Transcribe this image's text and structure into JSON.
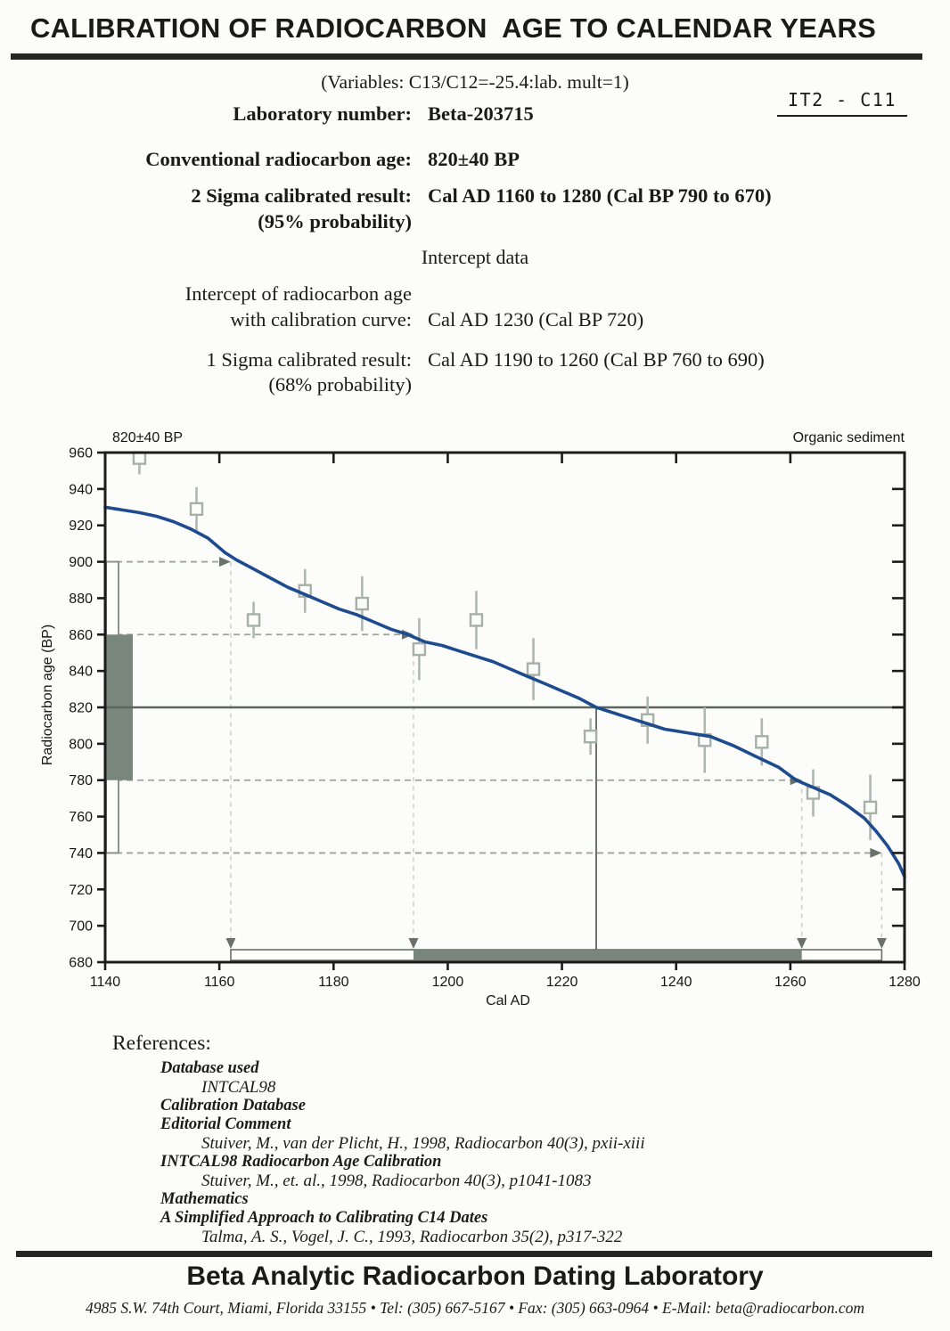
{
  "title": "CALIBRATION OF RADIOCARBON  AGE TO CALENDAR YEARS",
  "variables_line": "(Variables:  C13/C12=-25.4:lab. mult=1)",
  "sample_code": "IT2 - C11",
  "report": {
    "rows": [
      {
        "label": "Laboratory number:",
        "value": "Beta-203715"
      },
      {
        "label": "Conventional radiocarbon age:",
        "value": "820±40 BP"
      },
      {
        "label": "2 Sigma calibrated result:",
        "sublabel": "(95% probability)",
        "value": "Cal AD 1160 to 1280 (Cal BP 790 to 670)"
      }
    ],
    "intercept_heading": "Intercept data",
    "intercept_row": {
      "label_line1": "Intercept of radiocarbon age",
      "label_line2": "with calibration curve:",
      "value": "Cal AD 1230 (Cal BP 720)"
    },
    "one_sigma_row": {
      "label": "1 Sigma calibrated result:",
      "sublabel": "(68% probability)",
      "value": "Cal AD 1190 to 1260 (Cal BP 760 to 690)"
    }
  },
  "chart_data": {
    "type": "line",
    "title": "820±40 BP",
    "right_label": "Organic sediment",
    "xlabel": "Cal AD",
    "ylabel": "Radiocarbon age (BP)",
    "xlim": [
      1140,
      1280
    ],
    "ylim": [
      680,
      960
    ],
    "xticks": [
      1140,
      1160,
      1180,
      1200,
      1220,
      1240,
      1260,
      1280
    ],
    "yticks": [
      680,
      700,
      720,
      740,
      760,
      780,
      800,
      820,
      840,
      860,
      880,
      900,
      920,
      940,
      960
    ],
    "grid": false,
    "curve": {
      "name": "INTCAL98 calibration curve",
      "color": "#1e4b8f",
      "points": [
        [
          1140,
          930
        ],
        [
          1143,
          928.5
        ],
        [
          1146,
          927
        ],
        [
          1149,
          925
        ],
        [
          1152,
          922
        ],
        [
          1155,
          918
        ],
        [
          1158,
          913
        ],
        [
          1161,
          905
        ],
        [
          1163,
          901
        ],
        [
          1166,
          896
        ],
        [
          1169,
          891
        ],
        [
          1172,
          886
        ],
        [
          1175,
          882
        ],
        [
          1178,
          878
        ],
        [
          1181,
          874
        ],
        [
          1184,
          871
        ],
        [
          1187,
          867
        ],
        [
          1190,
          863
        ],
        [
          1193,
          860
        ],
        [
          1196,
          856
        ],
        [
          1199,
          854
        ],
        [
          1202,
          851
        ],
        [
          1205,
          848
        ],
        [
          1208,
          845
        ],
        [
          1211,
          841
        ],
        [
          1214,
          837
        ],
        [
          1217,
          833
        ],
        [
          1220,
          829
        ],
        [
          1223,
          825
        ],
        [
          1226,
          820
        ],
        [
          1229,
          817
        ],
        [
          1232,
          814
        ],
        [
          1235,
          811
        ],
        [
          1238,
          808
        ],
        [
          1242,
          806
        ],
        [
          1246,
          804
        ],
        [
          1250,
          799
        ],
        [
          1254,
          793
        ],
        [
          1258,
          787
        ],
        [
          1261,
          780
        ],
        [
          1264,
          776
        ],
        [
          1267,
          772
        ],
        [
          1270,
          766
        ],
        [
          1273,
          759
        ],
        [
          1275,
          752
        ],
        [
          1277,
          744
        ],
        [
          1279,
          734
        ],
        [
          1280,
          727
        ]
      ]
    },
    "measurements": {
      "name": "calibration data points with error bars",
      "points": [
        {
          "cal": 1146,
          "bp": 957,
          "err": 9
        },
        {
          "cal": 1156,
          "bp": 929,
          "err": 12
        },
        {
          "cal": 1166,
          "bp": 868,
          "err": 10
        },
        {
          "cal": 1175,
          "bp": 884,
          "err": 12
        },
        {
          "cal": 1185,
          "bp": 877,
          "err": 15
        },
        {
          "cal": 1195,
          "bp": 852,
          "err": 17
        },
        {
          "cal": 1205,
          "bp": 868,
          "err": 16
        },
        {
          "cal": 1215,
          "bp": 841,
          "err": 17
        },
        {
          "cal": 1225,
          "bp": 804,
          "err": 10
        },
        {
          "cal": 1235,
          "bp": 813,
          "err": 13
        },
        {
          "cal": 1245,
          "bp": 802,
          "err": 18
        },
        {
          "cal": 1255,
          "bp": 801,
          "err": 13
        },
        {
          "cal": 1264,
          "bp": 773,
          "err": 13
        },
        {
          "cal": 1274,
          "bp": 765,
          "err": 18
        }
      ]
    },
    "conventional_age_bp": 820,
    "sigma_bp": 40,
    "intercept": {
      "cal": 1226,
      "bp": 820
    },
    "age_box": {
      "two_sigma_bp": [
        740,
        900
      ],
      "one_sigma_bp": [
        780,
        860
      ]
    },
    "guides": [
      {
        "bp": 900,
        "cal": 1162
      },
      {
        "bp": 860,
        "cal": 1194
      },
      {
        "bp": 780,
        "cal": 1262
      },
      {
        "bp": 740,
        "cal": 1276
      }
    ],
    "calibrated_range_bar": {
      "two_sigma_cal": [
        1162,
        1276
      ],
      "one_sigma_cal": [
        1194,
        1262
      ]
    },
    "colors": {
      "box_fill": "#79867c",
      "error_bar": "#aeb8ae",
      "guide_dash": "#9ba49b",
      "arrow": "#68726a",
      "frame": "#1c1c1c",
      "reference_line": "#5d635d"
    }
  },
  "references": {
    "heading": "References:",
    "entries": [
      {
        "title": "Database used",
        "detail": "INTCAL98"
      },
      {
        "title": "Calibration Database",
        "detail": ""
      },
      {
        "title": "Editorial Comment",
        "detail": "Stuiver, M., van der Plicht, H., 1998, Radiocarbon 40(3), pxii-xiii"
      },
      {
        "title": "INTCAL98 Radiocarbon Age Calibration",
        "detail": "Stuiver, M., et. al., 1998, Radiocarbon 40(3), p1041-1083"
      },
      {
        "title": "Mathematics",
        "detail": ""
      },
      {
        "title": "A Simplified Approach to Calibrating C14 Dates",
        "detail": "Talma, A. S., Vogel, J. C., 1993, Radiocarbon 35(2), p317-322"
      }
    ]
  },
  "footer": {
    "lab_name": "Beta Analytic Radiocarbon Dating Laboratory",
    "address_line": "4985 S.W. 74th Court, Miami, Florida 33155 • Tel: (305) 667-5167 • Fax: (305) 663-0964 • E-Mail: beta@radiocarbon.com"
  }
}
